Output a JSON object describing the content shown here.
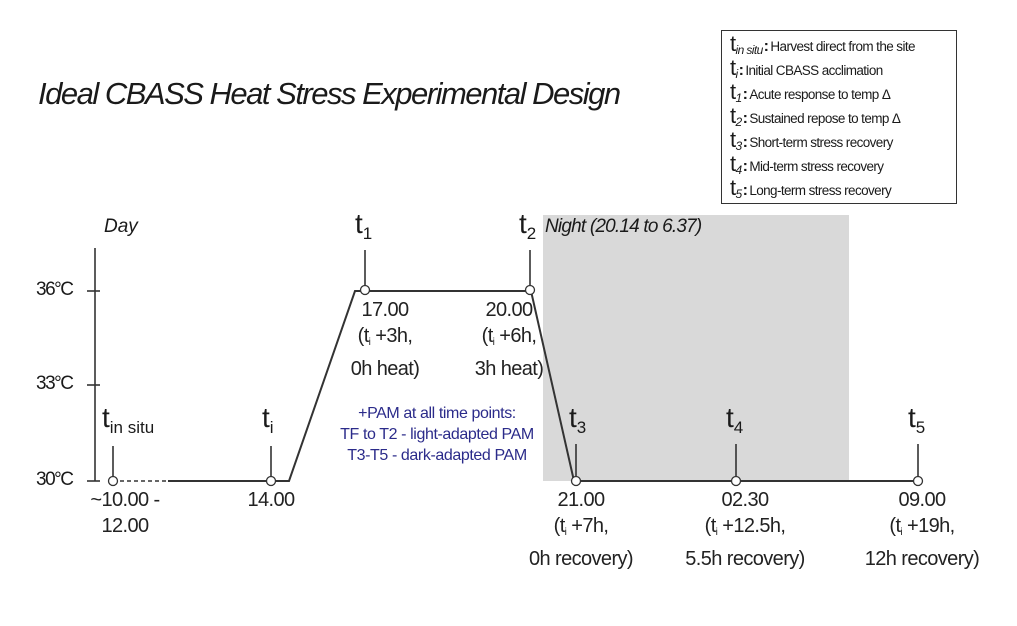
{
  "title": "Ideal CBASS Heat Stress Experimental Design",
  "legend": [
    {
      "symbol": "t",
      "sub": "in situ",
      "text": "Harvest direct from the site"
    },
    {
      "symbol": "t",
      "sub": "i",
      "text": "Initial CBASS acclimation"
    },
    {
      "symbol": "t",
      "sub": "1",
      "text": "Acute response to temp Δ"
    },
    {
      "symbol": "t",
      "sub": "2",
      "text": "Sustained repose to temp Δ"
    },
    {
      "symbol": "t",
      "sub": "3",
      "text": "Short-term stress recovery"
    },
    {
      "symbol": "t",
      "sub": "4",
      "text": "Mid-term stress recovery"
    },
    {
      "symbol": "t",
      "sub": "5",
      "text": "Long-term stress recovery"
    }
  ],
  "day_label": "Day",
  "night_label": "Night (20.14 to 6.37)",
  "y_ticks": [
    "36°C",
    "33°C",
    "30°C"
  ],
  "timepoints": {
    "tinsitu": {
      "t": "t",
      "sub": "in situ"
    },
    "ti": {
      "t": "t",
      "sub": "i"
    },
    "t1": {
      "t": "t",
      "sub": "1"
    },
    "t2": {
      "t": "t",
      "sub": "2"
    },
    "t3": {
      "t": "t",
      "sub": "3"
    },
    "t4": {
      "t": "t",
      "sub": "4"
    },
    "t5": {
      "t": "t",
      "sub": "5"
    }
  },
  "time_labels": {
    "tinsitu": {
      "l1": "~10.00 -",
      "l2": "12.00"
    },
    "ti": {
      "l1": "14.00"
    },
    "t1": {
      "l1": "17.00",
      "l2a": "(t",
      "l2s": "i",
      "l2b": " +3h,",
      "l3": "0h heat)"
    },
    "t2": {
      "l1": "20.00",
      "l2a": "(t",
      "l2s": "i",
      "l2b": " +6h,",
      "l3": "3h heat)"
    },
    "t3": {
      "l1": "21.00",
      "l2a": "(t",
      "l2s": "i",
      "l2b": " +7h,",
      "l3": "0h recovery)"
    },
    "t4": {
      "l1": "02.30",
      "l2a": "(t",
      "l2s": "i",
      "l2b": " +12.5h,",
      "l3": "5.5h recovery)"
    },
    "t5": {
      "l1": "09.00",
      "l2a": "(t",
      "l2s": "i",
      "l2b": " +19h,",
      "l3": "12h recovery)"
    }
  },
  "pam_note": [
    "+PAM at all time points:",
    "TF to T2 - light-adapted PAM",
    "T3-T5 - dark-adapted PAM"
  ],
  "colors": {
    "night_shade": "#d9d9d9",
    "pam_text": "#2b2b8a",
    "line": "#333333"
  }
}
